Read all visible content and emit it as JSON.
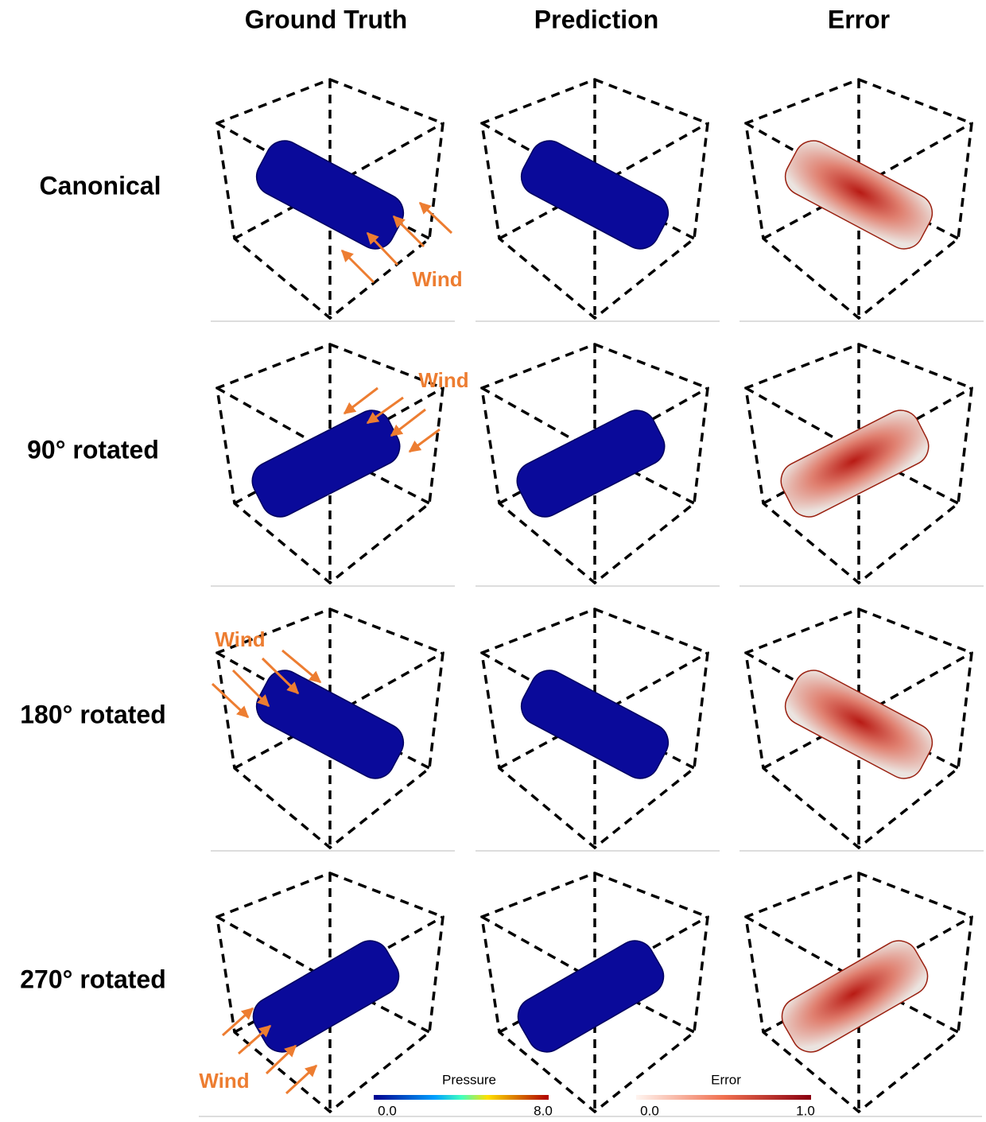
{
  "column_headers": [
    "Ground Truth",
    "Prediction",
    "Error"
  ],
  "row_labels": [
    "Canonical",
    "90° rotated",
    "180° rotated",
    "270° rotated"
  ],
  "wind_labels": [
    "Wind",
    "Wind",
    "Wind",
    "Wind"
  ],
  "colorbars": [
    {
      "title": "Pressure",
      "ticks": [
        "0.0",
        "8.0"
      ]
    },
    {
      "title": "Error",
      "ticks": [
        "0.0",
        "1.0"
      ]
    }
  ]
}
